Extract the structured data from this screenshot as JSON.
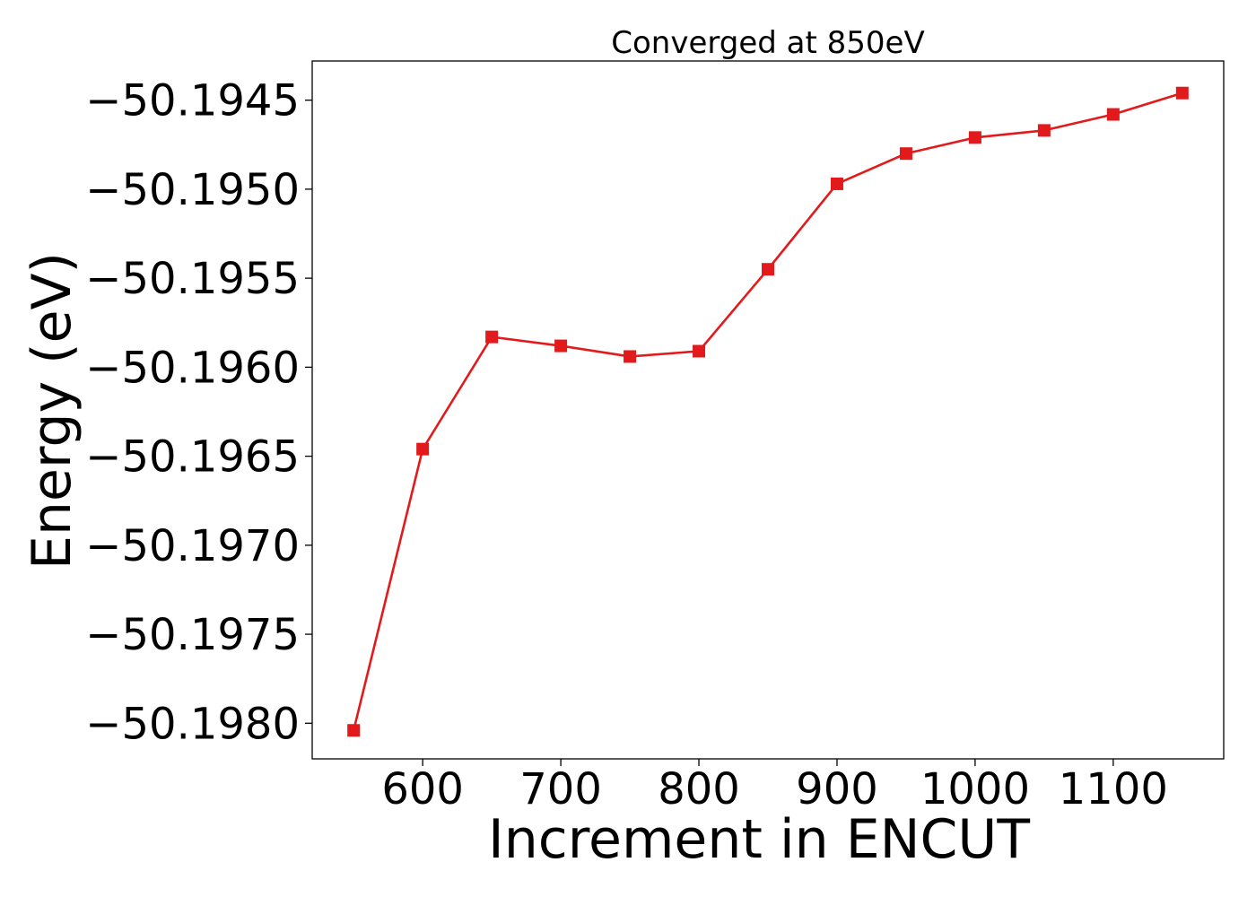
{
  "chart_data": {
    "type": "line",
    "title": "Converged at 850eV",
    "xlabel": "Increment in ENCUT",
    "ylabel": "Energy (eV)",
    "x_ticks": [
      600,
      700,
      800,
      900,
      1000,
      1100
    ],
    "y_ticks": [
      -50.1945,
      -50.195,
      -50.1955,
      -50.196,
      -50.1965,
      -50.197,
      -50.1975,
      -50.198
    ],
    "y_tick_labels": [
      "−50.1945",
      "−50.1950",
      "−50.1955",
      "−50.1960",
      "−50.1965",
      "−50.1970",
      "−50.1975",
      "−50.1980"
    ],
    "xlim": [
      520,
      1180
    ],
    "ylim": [
      -50.1982,
      -50.19428
    ],
    "grid": false,
    "series": [
      {
        "color": "#e31a1c",
        "marker": "square",
        "x": [
          550,
          600,
          650,
          700,
          750,
          800,
          850,
          900,
          950,
          1000,
          1050,
          1100,
          1150
        ],
        "y": [
          -50.19804,
          -50.19646,
          -50.19583,
          -50.19588,
          -50.19594,
          -50.19591,
          -50.19545,
          -50.19497,
          -50.1948,
          -50.19471,
          -50.19467,
          -50.19458,
          -50.19446
        ]
      }
    ]
  }
}
